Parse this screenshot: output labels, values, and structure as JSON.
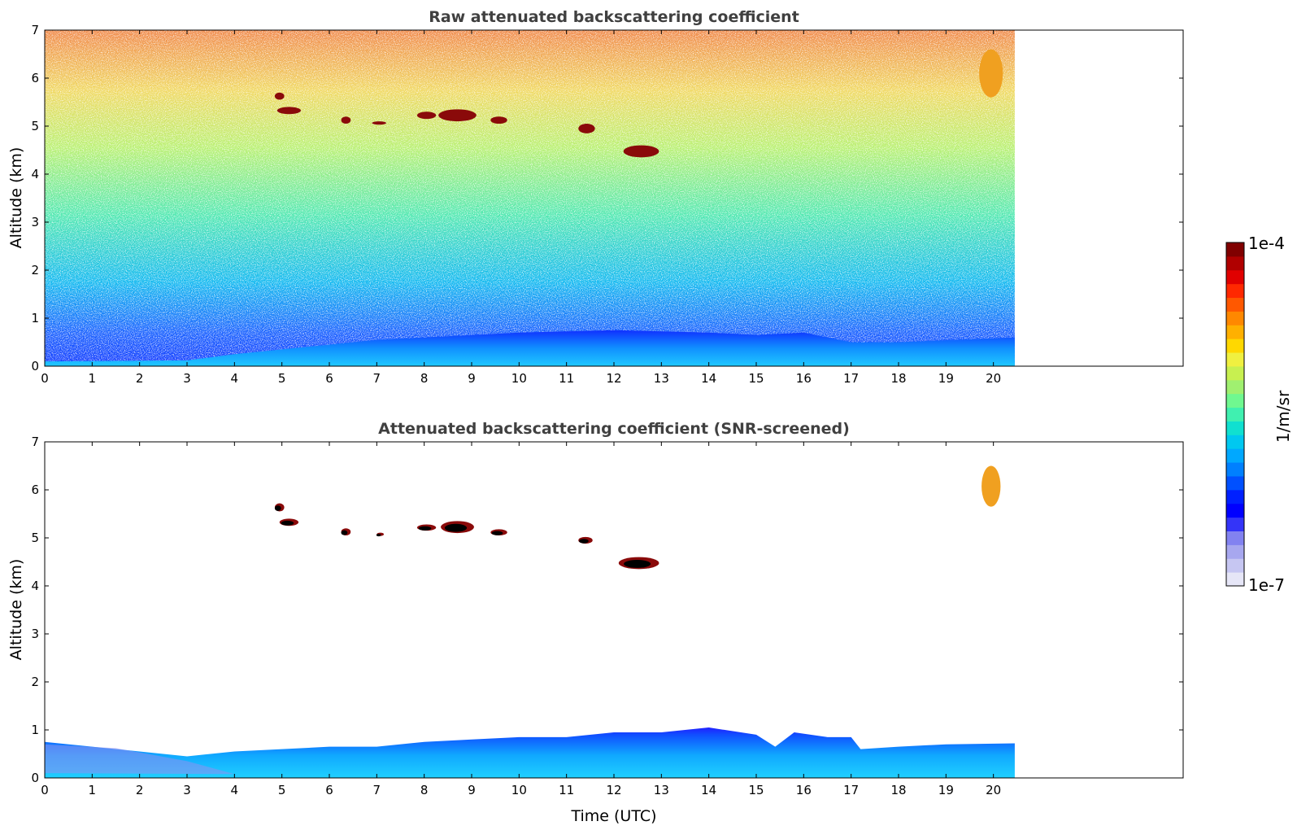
{
  "chart_data": [
    {
      "type": "heatmap",
      "title": "Raw attenuated backscattering coefficient",
      "xlabel": "",
      "ylabel": "Altitude (km)",
      "xlim": [
        0,
        24
      ],
      "ylim": [
        0,
        7
      ],
      "x_ticks": [
        "0",
        "1",
        "2",
        "3",
        "4",
        "5",
        "6",
        "7",
        "8",
        "9",
        "10",
        "11",
        "12",
        "13",
        "14",
        "15",
        "16",
        "17",
        "18",
        "19",
        "20"
      ],
      "y_ticks": [
        "0",
        "1",
        "2",
        "3",
        "4",
        "5",
        "6",
        "7"
      ],
      "data_end_time": 20.45,
      "boundary_layer_top_km": [
        [
          0,
          0.1
        ],
        [
          3,
          0.12
        ],
        [
          4,
          0.25
        ],
        [
          5,
          0.35
        ],
        [
          6,
          0.45
        ],
        [
          7,
          0.55
        ],
        [
          8,
          0.6
        ],
        [
          10,
          0.7
        ],
        [
          12,
          0.75
        ],
        [
          14,
          0.7
        ],
        [
          15,
          0.65
        ],
        [
          16,
          0.7
        ],
        [
          17,
          0.5
        ],
        [
          18,
          0.5
        ],
        [
          20.45,
          0.6
        ]
      ],
      "cloud_layers": [
        {
          "t0": 4.85,
          "t1": 5.05,
          "z0": 5.55,
          "z1": 5.7
        },
        {
          "t0": 4.9,
          "t1": 5.4,
          "z0": 5.25,
          "z1": 5.4
        },
        {
          "t0": 6.25,
          "t1": 6.45,
          "z0": 5.05,
          "z1": 5.2
        },
        {
          "t0": 6.9,
          "t1": 7.2,
          "z0": 5.03,
          "z1": 5.1
        },
        {
          "t0": 7.85,
          "t1": 8.25,
          "z0": 5.15,
          "z1": 5.3
        },
        {
          "t0": 8.3,
          "t1": 9.1,
          "z0": 5.1,
          "z1": 5.35
        },
        {
          "t0": 9.4,
          "t1": 9.75,
          "z0": 5.05,
          "z1": 5.2
        },
        {
          "t0": 11.25,
          "t1": 11.6,
          "z0": 4.85,
          "z1": 5.05
        },
        {
          "t0": 12.2,
          "t1": 12.95,
          "z0": 4.35,
          "z1": 4.6
        },
        {
          "t0": 19.7,
          "t1": 20.2,
          "z0": 5.6,
          "z1": 6.6
        }
      ]
    },
    {
      "type": "heatmap",
      "title": "Attenuated backscattering coefficient (SNR-screened)",
      "xlabel": "Time (UTC)",
      "ylabel": "Altitude (km)",
      "xlim": [
        0,
        24
      ],
      "ylim": [
        0,
        7
      ],
      "x_ticks": [
        "0",
        "1",
        "2",
        "3",
        "4",
        "5",
        "6",
        "7",
        "8",
        "9",
        "10",
        "11",
        "12",
        "13",
        "14",
        "15",
        "16",
        "17",
        "18",
        "19",
        "20"
      ],
      "y_ticks": [
        "0",
        "1",
        "2",
        "3",
        "4",
        "5",
        "6",
        "7"
      ],
      "data_end_time": 20.45,
      "boundary_layer_top_km": [
        [
          0,
          0.75
        ],
        [
          1,
          0.65
        ],
        [
          2,
          0.55
        ],
        [
          3,
          0.45
        ],
        [
          4,
          0.55
        ],
        [
          5,
          0.6
        ],
        [
          6,
          0.65
        ],
        [
          7,
          0.65
        ],
        [
          8,
          0.75
        ],
        [
          9,
          0.8
        ],
        [
          10,
          0.85
        ],
        [
          11,
          0.85
        ],
        [
          12,
          0.95
        ],
        [
          13,
          0.95
        ],
        [
          14,
          1.05
        ],
        [
          15,
          0.9
        ],
        [
          15.4,
          0.65
        ],
        [
          15.8,
          0.95
        ],
        [
          16.5,
          0.85
        ],
        [
          17,
          0.85
        ],
        [
          17.2,
          0.6
        ],
        [
          18,
          0.65
        ],
        [
          19,
          0.7
        ],
        [
          20.45,
          0.72
        ]
      ],
      "cloud_layers": [
        {
          "t0": 4.85,
          "t1": 5.05,
          "z0": 5.55,
          "z1": 5.72
        },
        {
          "t0": 4.95,
          "t1": 5.35,
          "z0": 5.25,
          "z1": 5.4
        },
        {
          "t0": 6.25,
          "t1": 6.45,
          "z0": 5.05,
          "z1": 5.2
        },
        {
          "t0": 7.0,
          "t1": 7.15,
          "z0": 5.05,
          "z1": 5.1
        },
        {
          "t0": 7.85,
          "t1": 8.25,
          "z0": 5.15,
          "z1": 5.28
        },
        {
          "t0": 8.35,
          "t1": 9.05,
          "z0": 5.1,
          "z1": 5.35
        },
        {
          "t0": 9.4,
          "t1": 9.75,
          "z0": 5.05,
          "z1": 5.18
        },
        {
          "t0": 11.25,
          "t1": 11.55,
          "z0": 4.88,
          "z1": 5.02
        },
        {
          "t0": 12.1,
          "t1": 12.95,
          "z0": 4.35,
          "z1": 4.6
        },
        {
          "t0": 19.75,
          "t1": 20.15,
          "z0": 5.65,
          "z1": 6.5
        }
      ]
    }
  ],
  "colorbar": {
    "label": "1/m/sr",
    "max_label": "1e-4",
    "min_label": "1e-7",
    "colors": [
      "#e6e6f7",
      "#c6c6f2",
      "#a7a7ef",
      "#8282f0",
      "#3434f8",
      "#0000ff",
      "#0020ff",
      "#0050ff",
      "#0080ff",
      "#00a8ff",
      "#00c8f0",
      "#10e0d0",
      "#40f0b0",
      "#70f890",
      "#a0f070",
      "#c8f050",
      "#f0f040",
      "#ffd800",
      "#ffb000",
      "#ff8800",
      "#ff5800",
      "#ff2800",
      "#e00000",
      "#b00000",
      "#800000"
    ]
  }
}
